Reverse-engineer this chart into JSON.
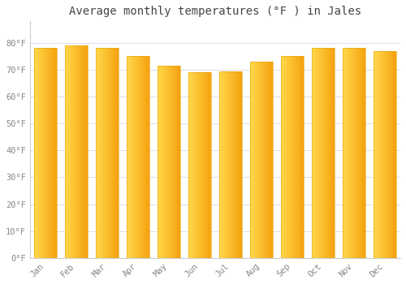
{
  "title": "Average monthly temperatures (°F ) in Jales",
  "months": [
    "Jan",
    "Feb",
    "Mar",
    "Apr",
    "May",
    "Jun",
    "Jul",
    "Aug",
    "Sep",
    "Oct",
    "Nov",
    "Dec"
  ],
  "values": [
    78,
    79,
    78,
    75,
    71.5,
    69,
    69.5,
    73,
    75,
    78,
    78,
    77
  ],
  "bar_color_left": "#FFD84D",
  "bar_color_right": "#F5A000",
  "background_color": "#FFFFFF",
  "grid_color": "#E0E0E8",
  "ylim": [
    0,
    88
  ],
  "yticks": [
    0,
    10,
    20,
    30,
    40,
    50,
    60,
    70,
    80
  ],
  "ytick_labels": [
    "0°F",
    "10°F",
    "20°F",
    "30°F",
    "40°F",
    "50°F",
    "60°F",
    "70°F",
    "80°F"
  ],
  "title_fontsize": 10,
  "tick_fontsize": 7.5,
  "title_color": "#444444",
  "tick_color": "#888888",
  "bar_width": 0.75,
  "figsize": [
    5.0,
    3.5
  ],
  "dpi": 100
}
